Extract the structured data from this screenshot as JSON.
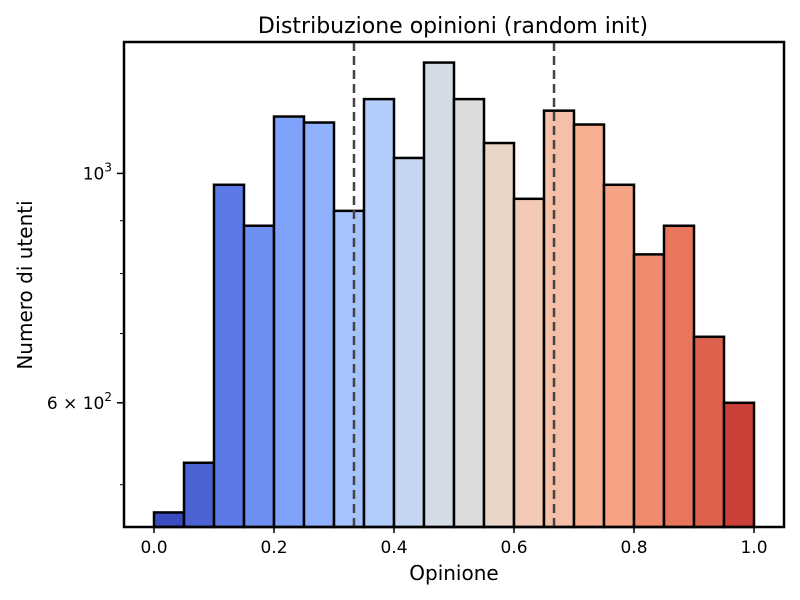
{
  "chart_data": {
    "type": "bar",
    "title": "Distribuzione opinioni (random init)",
    "xlabel": "Opinione",
    "ylabel": "Numero di utenti",
    "y_scale": "log",
    "xlim": [
      -0.05,
      1.05
    ],
    "ylim": [
      455,
      1340
    ],
    "x_ticks": [
      {
        "value": 0.0,
        "label": "0.0"
      },
      {
        "value": 0.2,
        "label": "0.2"
      },
      {
        "value": 0.4,
        "label": "0.4"
      },
      {
        "value": 0.6,
        "label": "0.6"
      },
      {
        "value": 0.8,
        "label": "0.8"
      },
      {
        "value": 1.0,
        "label": "1.0"
      }
    ],
    "y_major_ticks": [
      {
        "value": 600,
        "label_base": "6 × 10",
        "label_exp": "2"
      },
      {
        "value": 1000,
        "label_base": "10",
        "label_exp": "3"
      }
    ],
    "y_minor_ticks": [
      500,
      700,
      800,
      900
    ],
    "bin_edges": [
      0.0,
      0.05,
      0.1,
      0.15,
      0.2,
      0.25,
      0.3,
      0.35,
      0.4,
      0.45,
      0.5,
      0.55,
      0.6,
      0.65,
      0.7,
      0.75,
      0.8,
      0.85,
      0.9,
      0.95,
      1.0
    ],
    "values": [
      470,
      525,
      975,
      890,
      1135,
      1120,
      920,
      1180,
      1035,
      1280,
      1180,
      1070,
      945,
      1150,
      1115,
      975,
      835,
      890,
      695,
      600
    ],
    "colormap": "coolwarm",
    "bar_colors": [
      "#3b4cc0",
      "#4a63d3",
      "#5b7ae5",
      "#6c8ff1",
      "#7ea1fa",
      "#90b2fe",
      "#a5c3fe",
      "#b3cdfb",
      "#c5d6f2",
      "#d3dbe7",
      "#dddcdc",
      "#ead5c9",
      "#f2cab5",
      "#f5c0a7",
      "#f7af91",
      "#f6a385",
      "#f08b6e",
      "#e8765c",
      "#de614d",
      "#cc403a"
    ],
    "grid": false,
    "legend": "none",
    "reference_lines": [
      {
        "x": 0.3333,
        "style": "dashed",
        "color": "#444444"
      },
      {
        "x": 0.6667,
        "style": "dashed",
        "color": "#444444"
      }
    ]
  }
}
